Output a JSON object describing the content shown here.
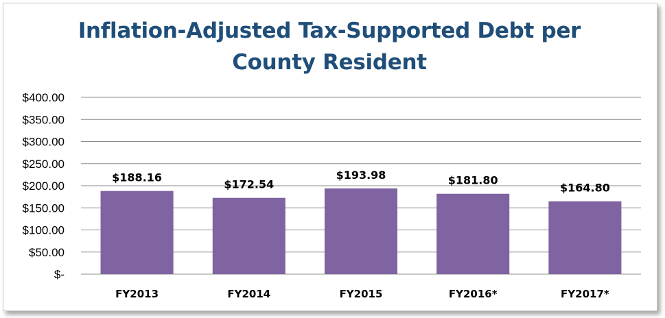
{
  "chart_data": {
    "type": "bar",
    "title": "Inflation-Adjusted Tax-Supported Debt per\nCounty Resident",
    "categories": [
      "FY2013",
      "FY2014",
      "FY2015",
      "FY2016*",
      "FY2017*"
    ],
    "values": [
      188.16,
      172.54,
      193.98,
      181.8,
      164.8
    ],
    "data_labels": [
      "$188.16",
      "$172.54",
      "$193.98",
      "$181.80",
      "$164.80"
    ],
    "ylim": [
      0,
      400
    ],
    "yticks": [
      0,
      50,
      100,
      150,
      200,
      250,
      300,
      350,
      400
    ],
    "ytick_labels": [
      "$-",
      "$50.00",
      "$100.00",
      "$150.00",
      "$200.00",
      "$250.00",
      "$300.00",
      "$350.00",
      "$400.00"
    ],
    "grid": true,
    "legend": "none",
    "bar_color": "#8064a2",
    "grid_color": "#8c8c8c",
    "title_color": "#1f4e79"
  }
}
